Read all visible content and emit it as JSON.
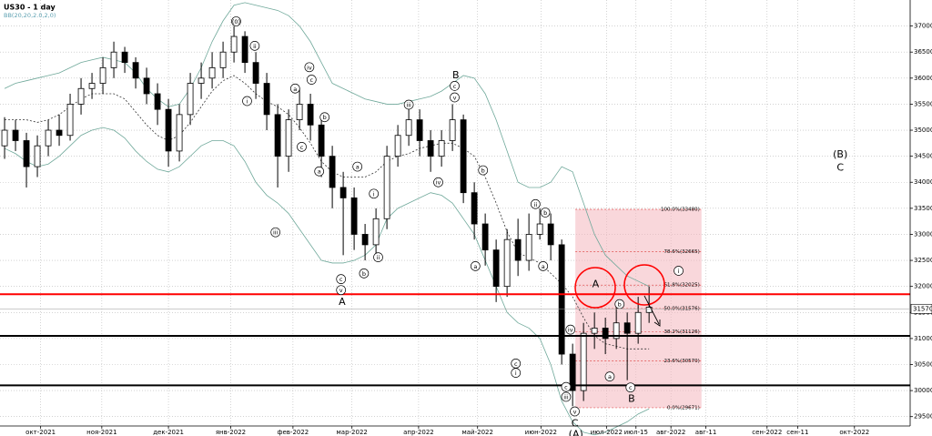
{
  "chart_data": {
    "type": "candlestick",
    "title": "US30 - 1 day",
    "subtitle": "BB(20,20,2.0,2,0)",
    "open": [
      34700,
      35000,
      34800,
      34300,
      34700,
      35000,
      34900,
      35500,
      35800,
      35900,
      36200,
      36500,
      36300,
      36000,
      35700,
      35400,
      34600,
      35300,
      35900,
      36000,
      36200,
      36500,
      36800,
      36300,
      35900,
      35300,
      34500,
      35200,
      35500,
      35100,
      34500,
      33900,
      33700,
      33000,
      32800,
      33300,
      34500,
      34900,
      35200,
      34800,
      34500,
      34800,
      35200,
      33800,
      33200,
      32700,
      32000,
      32900,
      32500,
      33000,
      33200,
      32800,
      30700,
      30000,
      31100,
      31200,
      31000,
      31300,
      31100,
      31500
    ],
    "high": [
      35250,
      35200,
      34950,
      34900,
      35200,
      35300,
      35700,
      36000,
      36100,
      36400,
      36700,
      36600,
      36400,
      36200,
      35900,
      35600,
      35500,
      36100,
      36300,
      36500,
      36700,
      37000,
      36900,
      36500,
      36100,
      35500,
      35400,
      35800,
      35700,
      35300,
      34700,
      34200,
      33900,
      33200,
      33500,
      34700,
      35100,
      35400,
      35400,
      35000,
      35000,
      35500,
      35300,
      34000,
      33400,
      32900,
      33100,
      33300,
      33400,
      33500,
      33400,
      32900,
      30900,
      31300,
      31500,
      31400,
      31600,
      31500,
      31800,
      32000
    ],
    "low": [
      34450,
      34600,
      33900,
      34100,
      34500,
      34700,
      34800,
      35300,
      35600,
      35700,
      36000,
      36100,
      35800,
      35500,
      35100,
      34300,
      34400,
      35100,
      35600,
      35800,
      36000,
      36300,
      36100,
      35600,
      35000,
      33900,
      34200,
      35000,
      34800,
      34100,
      33500,
      32600,
      32700,
      32500,
      32600,
      33100,
      34300,
      34700,
      34500,
      34200,
      34300,
      34600,
      33600,
      32900,
      32400,
      31700,
      31800,
      32200,
      32300,
      32900,
      32500,
      30500,
      29700,
      29800,
      30800,
      30700,
      30800,
      30200,
      30900,
      31300
    ],
    "close": [
      35000,
      34800,
      34300,
      34700,
      35000,
      34900,
      35500,
      35800,
      35900,
      36200,
      36500,
      36300,
      36000,
      35700,
      35400,
      34600,
      35300,
      35900,
      36000,
      36200,
      36500,
      36800,
      36300,
      35900,
      35300,
      34500,
      35200,
      35500,
      35100,
      34500,
      33900,
      33700,
      33000,
      32800,
      33300,
      34500,
      34900,
      35200,
      34800,
      34500,
      34800,
      35200,
      33800,
      33200,
      32700,
      32000,
      32900,
      32500,
      33000,
      33200,
      32800,
      30700,
      30000,
      31100,
      31200,
      31000,
      31300,
      31100,
      31500,
      31600
    ],
    "bb_upper": [
      35800,
      35900,
      35950,
      36000,
      36050,
      36100,
      36200,
      36300,
      36350,
      36400,
      36350,
      36300,
      36100,
      35800,
      35600,
      35450,
      35500,
      35800,
      36200,
      36700,
      37100,
      37400,
      37450,
      37400,
      37350,
      37300,
      37200,
      37000,
      36700,
      36300,
      35900,
      35800,
      35700,
      35600,
      35550,
      35500,
      35500,
      35550,
      35600,
      35650,
      35750,
      35900,
      36050,
      36000,
      35700,
      35200,
      34600,
      34000,
      33900,
      33900,
      34000,
      34300,
      34200,
      33600,
      33000,
      32600,
      32400,
      32200,
      32100,
      32000
    ],
    "bb_middle": [
      35200,
      35200,
      35200,
      35150,
      35200,
      35300,
      35450,
      35600,
      35700,
      35700,
      35700,
      35600,
      35350,
      35100,
      34900,
      34800,
      34900,
      35150,
      35450,
      35750,
      35950,
      36050,
      35900,
      35700,
      35550,
      35450,
      35300,
      35050,
      34750,
      34400,
      34200,
      34100,
      34100,
      34100,
      34200,
      34400,
      34500,
      34550,
      34650,
      34700,
      34750,
      34750,
      34650,
      34500,
      34100,
      33600,
      33050,
      32650,
      32550,
      32450,
      32250,
      32050,
      31800,
      31400,
      31050,
      30900,
      30850,
      30800,
      30800,
      30800
    ],
    "bb_lower": [
      34650,
      34550,
      34400,
      34300,
      34350,
      34500,
      34700,
      34900,
      35000,
      35050,
      35000,
      34850,
      34600,
      34400,
      34250,
      34200,
      34300,
      34500,
      34700,
      34800,
      34800,
      34700,
      34400,
      34000,
      33750,
      33600,
      33400,
      33100,
      32800,
      32500,
      32450,
      32450,
      32500,
      32600,
      32800,
      33300,
      33500,
      33600,
      33700,
      33800,
      33750,
      33600,
      33300,
      33000,
      32500,
      32000,
      31500,
      31300,
      31200,
      31000,
      30500,
      29800,
      29400,
      29200,
      29150,
      29200,
      29300,
      29400,
      29550,
      29650
    ],
    "bb_color": "#6fa89a",
    "ylim": [
      29320,
      37500
    ],
    "yticks": [
      29500,
      30000,
      30500,
      31000,
      31500,
      32000,
      32500,
      33000,
      33500,
      34000,
      34500,
      35000,
      35500,
      36000,
      36500,
      37000
    ],
    "xlim": [
      -0.42,
      82.9
    ],
    "xticks": [
      {
        "value": 3.3,
        "label": "окт-2021"
      },
      {
        "value": 8.9,
        "label": "ноя-2021"
      },
      {
        "value": 15,
        "label": "дек-2021"
      },
      {
        "value": 20.7,
        "label": "янв-2022"
      },
      {
        "value": 26.4,
        "label": "фев-2022"
      },
      {
        "value": 31.8,
        "label": "мар-2022"
      },
      {
        "value": 37.9,
        "label": "апр-2022"
      },
      {
        "value": 43.3,
        "label": "май-2022"
      },
      {
        "value": 49.1,
        "label": "июн-2022"
      },
      {
        "value": 55.1,
        "label": "июл-2022"
      },
      {
        "value": 57.8,
        "label": "июл-15"
      },
      {
        "value": 61,
        "label": "авг-2022"
      },
      {
        "value": 64.2,
        "label": "авг-11"
      },
      {
        "value": 69.8,
        "label": "сен-2022"
      },
      {
        "value": 72.6,
        "label": "сен-11"
      },
      {
        "value": 77.8,
        "label": "окт-2022"
      }
    ],
    "grid": true,
    "current_price": {
      "value": 31570,
      "label": "31570"
    },
    "hlines": [
      {
        "value": 31850,
        "color": "#ff0000"
      },
      {
        "value": 31050,
        "color": "#000000"
      },
      {
        "value": 30100,
        "color": "#000000"
      }
    ],
    "fib": {
      "x_start": 52.25,
      "x_end": 63.8,
      "color": "#f4b6be",
      "levels": [
        {
          "value": 33480,
          "label": "100.0%(33480)"
        },
        {
          "value": 32665,
          "label": "78.6%(32665)"
        },
        {
          "value": 32025,
          "label": "61.8%(32025)"
        },
        {
          "value": 31576,
          "label": "50.0%(31576)"
        },
        {
          "value": 31126,
          "label": "38.2%(31126)"
        },
        {
          "value": 30570,
          "label": "23.6%(30570)"
        },
        {
          "value": 29671,
          "label": "0.0%(29671)"
        }
      ]
    },
    "annotations": [
      {
        "text": "(0)",
        "x": 21.2,
        "price": 37090,
        "circled": true
      },
      {
        "text": "ii",
        "x": 22.9,
        "price": 36620,
        "circled": true
      },
      {
        "text": "i",
        "x": 22.2,
        "price": 35560,
        "circled": true
      },
      {
        "text": "iii",
        "x": 24.8,
        "price": 33040,
        "circled": true
      },
      {
        "text": "iv",
        "x": 27.9,
        "price": 36210,
        "circled": true
      },
      {
        "text": "a",
        "x": 26.6,
        "price": 35800,
        "circled": true
      },
      {
        "text": "c",
        "x": 28.1,
        "price": 35970,
        "circled": true
      },
      {
        "text": "b",
        "x": 29.3,
        "price": 35250,
        "circled": true
      },
      {
        "text": "c",
        "x": 27.2,
        "price": 34680,
        "circled": true
      },
      {
        "text": "a",
        "x": 28.8,
        "price": 34210,
        "circled": true
      },
      {
        "text": "a",
        "x": 32.3,
        "price": 34300,
        "circled": true
      },
      {
        "text": "c",
        "x": 30.8,
        "price": 32140,
        "circled": true
      },
      {
        "text": "v",
        "x": 30.8,
        "price": 31930,
        "circled": true
      },
      {
        "text": "A",
        "x": 30.9,
        "price": 31710,
        "circled": false
      },
      {
        "text": "b",
        "x": 32.9,
        "price": 32250,
        "circled": true
      },
      {
        "text": "ii",
        "x": 34.2,
        "price": 32560,
        "circled": true
      },
      {
        "text": "i",
        "x": 33.8,
        "price": 33780,
        "circled": true
      },
      {
        "text": "iii",
        "x": 37,
        "price": 35490,
        "circled": true
      },
      {
        "text": "iv",
        "x": 39.7,
        "price": 34000,
        "circled": true
      },
      {
        "text": "B",
        "x": 41.3,
        "price": 36060,
        "circled": false
      },
      {
        "text": "c",
        "x": 41.2,
        "price": 35850,
        "circled": true
      },
      {
        "text": "v",
        "x": 41.2,
        "price": 35630,
        "circled": true
      },
      {
        "text": "b",
        "x": 43.8,
        "price": 34230,
        "circled": true
      },
      {
        "text": "a",
        "x": 43.1,
        "price": 32390,
        "circled": true
      },
      {
        "text": "ii",
        "x": 48.6,
        "price": 33580,
        "circled": true
      },
      {
        "text": "b",
        "x": 49.5,
        "price": 33420,
        "circled": true
      },
      {
        "text": "a",
        "x": 49.3,
        "price": 32390,
        "circled": true
      },
      {
        "text": "c",
        "x": 46.8,
        "price": 30520,
        "circled": true
      },
      {
        "text": "i",
        "x": 46.8,
        "price": 30340,
        "circled": true
      },
      {
        "text": "iv",
        "x": 51.8,
        "price": 31170,
        "circled": true
      },
      {
        "text": "c",
        "x": 51.4,
        "price": 30070,
        "circled": true
      },
      {
        "text": "iii",
        "x": 51.4,
        "price": 29880,
        "circled": true
      },
      {
        "text": "v",
        "x": 52.2,
        "price": 29600,
        "circled": true
      },
      {
        "text": "C",
        "x": 52.2,
        "price": 29370,
        "circled": false
      },
      {
        "text": "(A)",
        "x": 52.3,
        "price": 29160,
        "circled": false
      },
      {
        "text": "A",
        "x": 54.1,
        "price": 32050,
        "circled": false
      },
      {
        "text": "b",
        "x": 56.3,
        "price": 31660,
        "circled": true
      },
      {
        "text": "a",
        "x": 55.4,
        "price": 30270,
        "circled": true
      },
      {
        "text": "c",
        "x": 57.3,
        "price": 30060,
        "circled": true
      },
      {
        "text": "B",
        "x": 57.4,
        "price": 29840,
        "circled": false
      },
      {
        "text": "i",
        "x": 61.7,
        "price": 32300,
        "circled": true
      },
      {
        "text": "(B)",
        "x": 76.5,
        "price": 34540,
        "circled": false
      },
      {
        "text": "C",
        "x": 76.5,
        "price": 34280,
        "circled": false
      }
    ]
  }
}
